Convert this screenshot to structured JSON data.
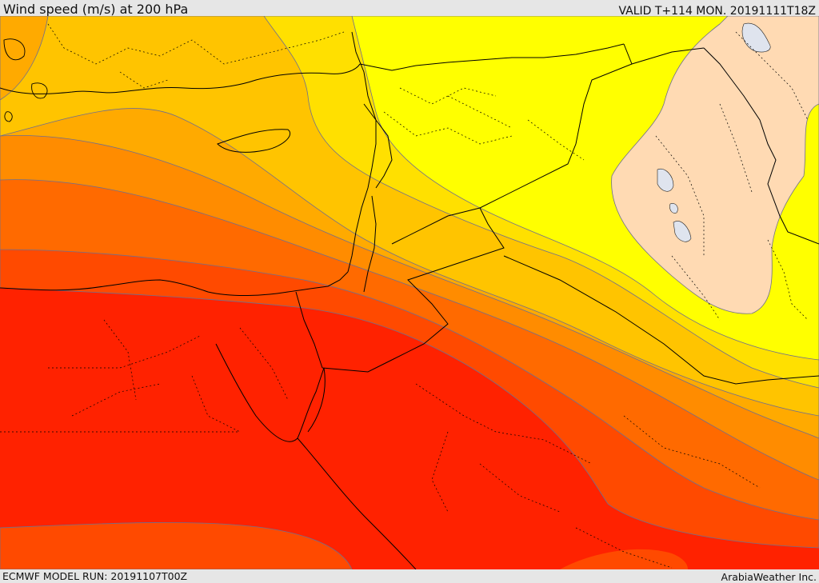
{
  "header": {
    "title": "Wind speed (m/s) at 200 hPa",
    "valid": "VALID T+114 MON. 20191111T18Z"
  },
  "footer": {
    "model_run": "ECMWF MODEL RUN: 20191107T00Z",
    "credit": "ArabiaWeather Inc."
  },
  "map": {
    "field": "wind speed at 200 hPa",
    "band_colors": [
      "#ffdab3",
      "#ffff00",
      "#ffe000",
      "#ffc400",
      "#ffaa00",
      "#ff8c00",
      "#ff6a00",
      "#ff4a00",
      "#ff2200"
    ],
    "contour_color": "#6f6f8f",
    "border_color": "#000000",
    "coast_color": "#000000",
    "lake_color": "#dfe4ee"
  }
}
